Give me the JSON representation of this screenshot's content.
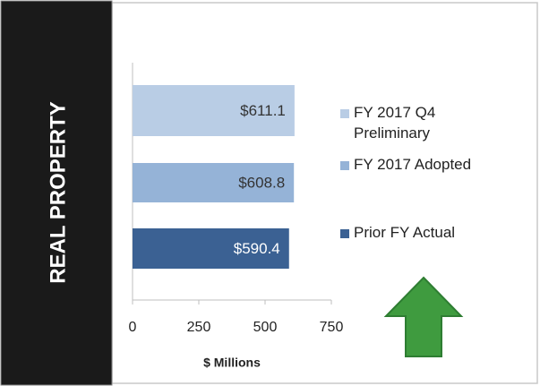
{
  "chart_data": {
    "type": "bar",
    "orientation": "horizontal",
    "side_label": "REAL PROPERTY",
    "categories": [
      "FY 2017 Q4 Preliminary",
      "FY 2017 Adopted",
      "Prior FY Actual"
    ],
    "values": [
      611.1,
      608.8,
      590.4
    ],
    "value_labels": [
      "$611.1",
      "$608.8",
      "$590.4"
    ],
    "colors": [
      "#b9cde5",
      "#95b3d7",
      "#3b6193"
    ],
    "label_colors": [
      "#333333",
      "#333333",
      "#ffffff"
    ],
    "xlim": [
      0,
      750
    ],
    "xticks": [
      0,
      250,
      500,
      750
    ],
    "xlabel": "$ Millions",
    "legend": "right"
  }
}
